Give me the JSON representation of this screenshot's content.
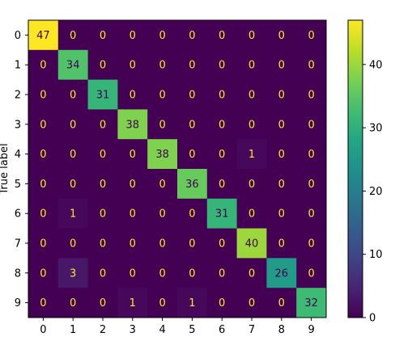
{
  "chart_data": {
    "type": "heatmap",
    "title": "",
    "xlabel": "",
    "ylabel": "True label",
    "x_categories": [
      "0",
      "1",
      "2",
      "3",
      "4",
      "5",
      "6",
      "7",
      "8",
      "9"
    ],
    "y_categories": [
      "0",
      "1",
      "2",
      "3",
      "4",
      "5",
      "6",
      "7",
      "8",
      "9"
    ],
    "matrix": [
      [
        47,
        0,
        0,
        0,
        0,
        0,
        0,
        0,
        0,
        0
      ],
      [
        0,
        34,
        0,
        0,
        0,
        0,
        0,
        0,
        0,
        0
      ],
      [
        0,
        0,
        31,
        0,
        0,
        0,
        0,
        0,
        0,
        0
      ],
      [
        0,
        0,
        0,
        38,
        0,
        0,
        0,
        0,
        0,
        0
      ],
      [
        0,
        0,
        0,
        0,
        38,
        0,
        0,
        1,
        0,
        0
      ],
      [
        0,
        0,
        0,
        0,
        0,
        36,
        0,
        0,
        0,
        0
      ],
      [
        0,
        1,
        0,
        0,
        0,
        0,
        31,
        0,
        0,
        0
      ],
      [
        0,
        0,
        0,
        0,
        0,
        0,
        0,
        40,
        0,
        0
      ],
      [
        0,
        3,
        0,
        0,
        0,
        0,
        0,
        0,
        26,
        0
      ],
      [
        0,
        0,
        0,
        1,
        0,
        1,
        0,
        0,
        0,
        32
      ]
    ],
    "colormap": "viridis",
    "vmin": 0,
    "vmax": 47,
    "colorbar_ticks": [
      0,
      10,
      20,
      30,
      40
    ],
    "colorbar_tick_labels": [
      "0",
      "10",
      "20",
      "30",
      "40"
    ],
    "grid": false
  }
}
